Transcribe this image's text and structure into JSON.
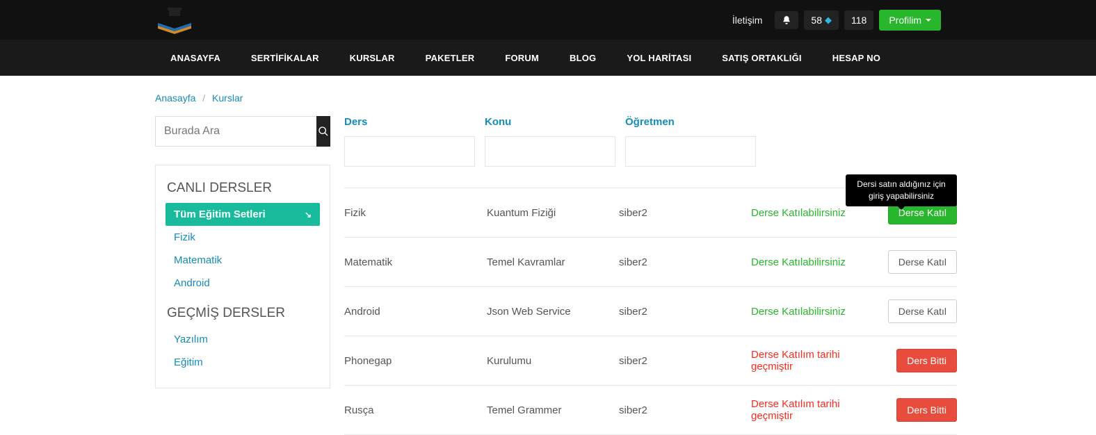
{
  "topbar": {
    "contact_label": "İletişim",
    "gem_count": "58",
    "count2": "118",
    "profile_label": "Profilim"
  },
  "nav": [
    "ANASAYFA",
    "SERTİFİKALAR",
    "KURSLAR",
    "PAKETLER",
    "FORUM",
    "BLOG",
    "YOL HARİTASI",
    "SATIŞ ORTAKLIĞI",
    "HESAP NO"
  ],
  "breadcrumb": {
    "home": "Anasayfa",
    "current": "Kurslar"
  },
  "search": {
    "placeholder": "Burada Ara"
  },
  "sidebar": {
    "live_title": "CANLI DERSLER",
    "past_title": "GEÇMİŞ DERSLER",
    "live": [
      "Tüm Eğitim Setleri",
      "Fizik",
      "Matematik",
      "Android"
    ],
    "past": [
      "Yazılım",
      "Eğitim"
    ]
  },
  "filters": {
    "ders": "Ders",
    "konu": "Konu",
    "ogretmen": "Öğretmen"
  },
  "tooltip": "Dersi satın aldığınız için giriş yapabilirsiniz",
  "status": {
    "ok": "Derse Katılabilirsiniz",
    "expired": "Derse Katılım tarihi geçmiştir"
  },
  "buttons": {
    "join": "Derse Katıl",
    "ended": "Ders Bitti"
  },
  "rows": [
    {
      "ders": "Fizik",
      "konu": "Kuantum Fiziği",
      "ogretmen": "siber2",
      "status": "ok",
      "btn": "join_green"
    },
    {
      "ders": "Matematik",
      "konu": "Temel Kavramlar",
      "ogretmen": "siber2",
      "status": "ok",
      "btn": "join_white"
    },
    {
      "ders": "Android",
      "konu": "Json Web Service",
      "ogretmen": "siber2",
      "status": "ok",
      "btn": "join_white"
    },
    {
      "ders": "Phonegap",
      "konu": "Kurulumu",
      "ogretmen": "siber2",
      "status": "expired",
      "btn": "ended"
    },
    {
      "ders": "Rusça",
      "konu": "Temel Grammer",
      "ogretmen": "siber2",
      "status": "expired",
      "btn": "ended"
    }
  ]
}
